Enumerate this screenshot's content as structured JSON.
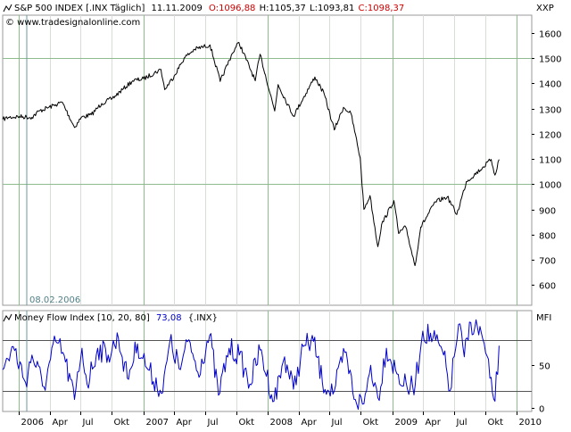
{
  "chart_data": [
    {
      "type": "line",
      "header": {
        "icon": "line-chart-icon",
        "title": "S&P 500 INDEX [.INX  Täglich]",
        "date": "11.11.2009",
        "open": "O:1096,88",
        "high": "H:1105,37",
        "low": "L:1093,81",
        "close": "C:1098,37",
        "website": "© www.tradesignalonline.com"
      },
      "y_axis_label": "XXP",
      "ylim": [
        520,
        1670
      ],
      "yticks": [
        "1600",
        "1500",
        "1400",
        "1300",
        "1200",
        "1100",
        "1000",
        "900",
        "800",
        "700",
        "600"
      ],
      "cursor_label": "08.02.2006",
      "grid": true,
      "series": [
        {
          "color": "#000000",
          "points": [
            [
              "2005-11-14",
              1257
            ],
            [
              "2005-12-01",
              1265
            ],
            [
              "2006-01-02",
              1268
            ],
            [
              "2006-02-08",
              1265
            ],
            [
              "2006-03-01",
              1290
            ],
            [
              "2006-04-19",
              1315
            ],
            [
              "2006-05-08",
              1325
            ],
            [
              "2006-06-13",
              1225
            ],
            [
              "2006-07-03",
              1265
            ],
            [
              "2006-08-01",
              1275
            ],
            [
              "2006-09-01",
              1320
            ],
            [
              "2006-10-02",
              1340
            ],
            [
              "2006-11-01",
              1375
            ],
            [
              "2006-12-01",
              1410
            ],
            [
              "2007-01-02",
              1418
            ],
            [
              "2007-02-22",
              1455
            ],
            [
              "2007-03-05",
              1375
            ],
            [
              "2007-04-02",
              1430
            ],
            [
              "2007-05-01",
              1500
            ],
            [
              "2007-06-01",
              1535
            ],
            [
              "2007-07-16",
              1552
            ],
            [
              "2007-08-15",
              1407
            ],
            [
              "2007-09-19",
              1518
            ],
            [
              "2007-10-09",
              1562
            ],
            [
              "2007-11-26",
              1410
            ],
            [
              "2007-12-10",
              1515
            ],
            [
              "2008-01-22",
              1290
            ],
            [
              "2008-02-01",
              1395
            ],
            [
              "2008-03-17",
              1270
            ],
            [
              "2008-05-19",
              1425
            ],
            [
              "2008-06-16",
              1355
            ],
            [
              "2008-07-15",
              1215
            ],
            [
              "2008-08-11",
              1305
            ],
            [
              "2008-09-02",
              1280
            ],
            [
              "2008-09-29",
              1105
            ],
            [
              "2008-10-10",
              900
            ],
            [
              "2008-10-28",
              955
            ],
            [
              "2008-11-20",
              752
            ],
            [
              "2008-12-01",
              840
            ],
            [
              "2009-01-06",
              935
            ],
            [
              "2009-01-20",
              805
            ],
            [
              "2009-02-10",
              830
            ],
            [
              "2009-03-09",
              677
            ],
            [
              "2009-03-26",
              830
            ],
            [
              "2009-05-08",
              930
            ],
            [
              "2009-06-12",
              950
            ],
            [
              "2009-07-10",
              880
            ],
            [
              "2009-08-07",
              1010
            ],
            [
              "2009-09-23",
              1065
            ],
            [
              "2009-10-19",
              1098
            ],
            [
              "2009-10-30",
              1036
            ],
            [
              "2009-11-11",
              1098
            ]
          ]
        }
      ]
    },
    {
      "type": "line",
      "header": {
        "icon": "line-chart-icon",
        "title": "Money Flow Index [10, 20, 80]",
        "value": "73,08",
        "symbol": "{.INX}"
      },
      "y_axis_label": "MFI",
      "ylim": [
        -4,
        114
      ],
      "yticks": [
        "50",
        "0"
      ],
      "reference_lines": [
        20,
        80
      ],
      "grid": true,
      "series": [
        {
          "color": "#0000cc",
          "points": [
            [
              "2005-11-14",
              45
            ],
            [
              "2005-12-15",
              72
            ],
            [
              "2006-01-20",
              30
            ],
            [
              "2006-02-08",
              62
            ],
            [
              "2006-03-15",
              25
            ],
            [
              "2006-04-19",
              78
            ],
            [
              "2006-05-10",
              65
            ],
            [
              "2006-06-13",
              10
            ],
            [
              "2006-07-05",
              70
            ],
            [
              "2006-07-20",
              28
            ],
            [
              "2006-08-20",
              70
            ],
            [
              "2006-09-20",
              62
            ],
            [
              "2006-10-20",
              82
            ],
            [
              "2006-11-15",
              35
            ],
            [
              "2006-12-15",
              75
            ],
            [
              "2007-01-15",
              45
            ],
            [
              "2007-02-27",
              18
            ],
            [
              "2007-03-20",
              78
            ],
            [
              "2007-04-20",
              45
            ],
            [
              "2007-05-15",
              80
            ],
            [
              "2007-06-10",
              42
            ],
            [
              "2007-07-15",
              85
            ],
            [
              "2007-08-10",
              15
            ],
            [
              "2007-09-10",
              70
            ],
            [
              "2007-10-10",
              62
            ],
            [
              "2007-11-10",
              28
            ],
            [
              "2007-12-10",
              68
            ],
            [
              "2008-01-20",
              8
            ],
            [
              "2008-02-20",
              60
            ],
            [
              "2008-03-17",
              22
            ],
            [
              "2008-04-15",
              72
            ],
            [
              "2008-05-15",
              78
            ],
            [
              "2008-06-10",
              30
            ],
            [
              "2008-07-15",
              20
            ],
            [
              "2008-08-15",
              65
            ],
            [
              "2008-09-15",
              10
            ],
            [
              "2008-10-10",
              5
            ],
            [
              "2008-10-30",
              50
            ],
            [
              "2008-11-20",
              12
            ],
            [
              "2008-12-15",
              70
            ],
            [
              "2009-01-15",
              40
            ],
            [
              "2009-02-15",
              22
            ],
            [
              "2009-03-10",
              28
            ],
            [
              "2009-04-01",
              90
            ],
            [
              "2009-05-01",
              82
            ],
            [
              "2009-06-01",
              62
            ],
            [
              "2009-06-20",
              20
            ],
            [
              "2009-07-15",
              98
            ],
            [
              "2009-08-01",
              60
            ],
            [
              "2009-08-20",
              100
            ],
            [
              "2009-09-20",
              88
            ],
            [
              "2009-10-15",
              35
            ],
            [
              "2009-10-30",
              8
            ],
            [
              "2009-11-11",
              73
            ]
          ]
        }
      ]
    }
  ],
  "x_axis": {
    "ticks": [
      {
        "date": "2006-01-01",
        "label": "2006",
        "year": true
      },
      {
        "date": "2006-04-01",
        "label": "Apr",
        "year": false
      },
      {
        "date": "2006-07-01",
        "label": "Jul",
        "year": false
      },
      {
        "date": "2006-10-01",
        "label": "Okt",
        "year": false
      },
      {
        "date": "2007-01-01",
        "label": "2007",
        "year": true
      },
      {
        "date": "2007-04-01",
        "label": "Apr",
        "year": false
      },
      {
        "date": "2007-07-01",
        "label": "Jul",
        "year": false
      },
      {
        "date": "2007-10-01",
        "label": "Okt",
        "year": false
      },
      {
        "date": "2008-01-01",
        "label": "2008",
        "year": true
      },
      {
        "date": "2008-04-01",
        "label": "Apr",
        "year": false
      },
      {
        "date": "2008-07-01",
        "label": "Jul",
        "year": false
      },
      {
        "date": "2008-10-01",
        "label": "Okt",
        "year": false
      },
      {
        "date": "2009-01-01",
        "label": "2009",
        "year": true
      },
      {
        "date": "2009-04-01",
        "label": "Apr",
        "year": false
      },
      {
        "date": "2009-07-01",
        "label": "Jul",
        "year": false
      },
      {
        "date": "2009-10-01",
        "label": "Okt",
        "year": false
      },
      {
        "date": "2010-01-01",
        "label": "2010",
        "year": true
      }
    ],
    "start": "2005-11-14",
    "end": "2010-02-15"
  },
  "colors": {
    "background": "#ffffff",
    "plot_bg": "#ffffff",
    "year_gridline": "#8fbc8f",
    "month_gridline": "#d8ddd8",
    "cursor_line": "#6a9aa0",
    "cursor_label": "#4f7f86",
    "price_line": "#000000",
    "mfi_line": "#0000cc",
    "open_value": "#cc0000",
    "close_value": "#cc0000",
    "mfi_value": "#0000cc",
    "axis_text": "#000000"
  }
}
